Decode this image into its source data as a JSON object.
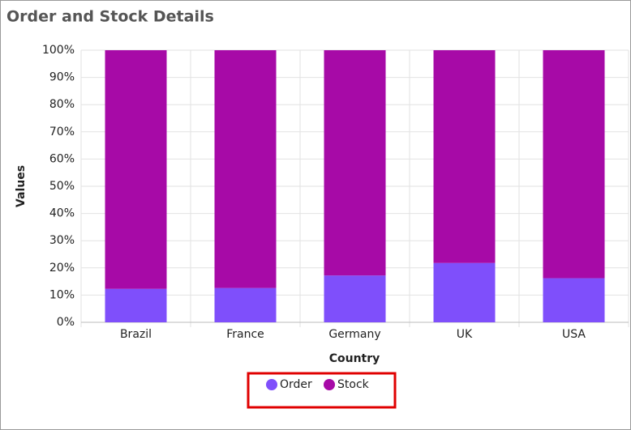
{
  "chart_data": {
    "type": "stacked_bar_100",
    "title": "Order and Stock Details",
    "x_label": "Country",
    "y_label": "Values",
    "categories": [
      "Brazil",
      "France",
      "Germany",
      "UK",
      "USA"
    ],
    "series": [
      {
        "name": "Order",
        "color": "#7f4ffb",
        "values": [
          12.3,
          12.6,
          17.2,
          21.8,
          16.2
        ]
      },
      {
        "name": "Stock",
        "color": "#a70aa7",
        "values": [
          87.7,
          87.4,
          82.8,
          78.2,
          83.8
        ]
      }
    ],
    "ylim": [
      0,
      100
    ],
    "yticks": [
      {
        "value": 0,
        "label": "0%"
      },
      {
        "value": 10,
        "label": "10%"
      },
      {
        "value": 20,
        "label": "20%"
      },
      {
        "value": 30,
        "label": "30%"
      },
      {
        "value": 40,
        "label": "40%"
      },
      {
        "value": 50,
        "label": "50%"
      },
      {
        "value": 60,
        "label": "60%"
      },
      {
        "value": 70,
        "label": "70%"
      },
      {
        "value": 80,
        "label": "80%"
      },
      {
        "value": 90,
        "label": "90%"
      },
      {
        "value": 100,
        "label": "100%"
      }
    ],
    "grid": true
  }
}
